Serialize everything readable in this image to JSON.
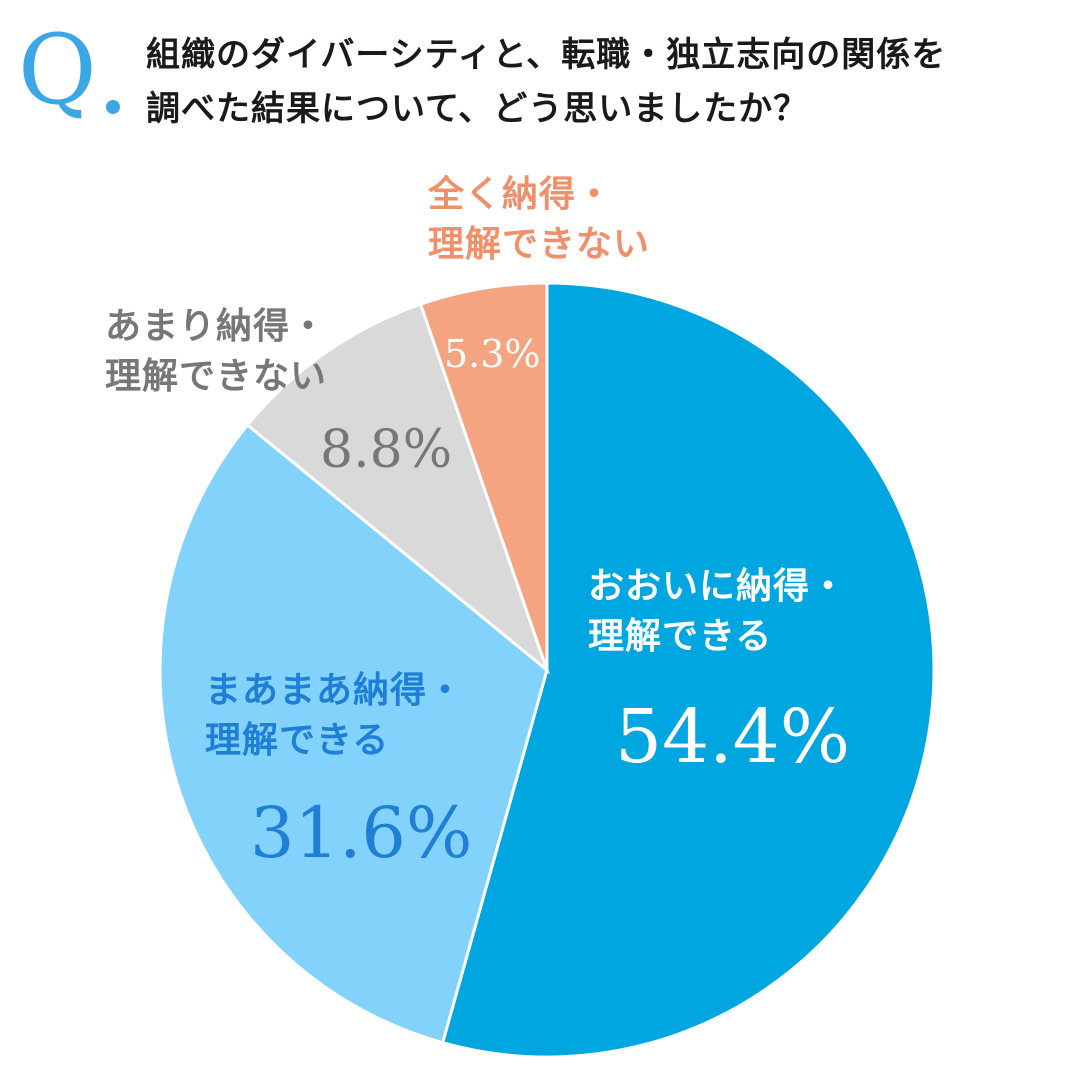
{
  "question": {
    "mark": "Q",
    "line1": "組織のダイバーシティと、転職・独立志向の関係を",
    "line2": "調べた結果について、どう思いましたか？"
  },
  "chart_data": {
    "type": "pie",
    "title": "組織のダイバーシティと、転職・独立志向の関係を調べた結果について、どう思いましたか？",
    "start": "12 o'clock, clockwise",
    "slices": [
      {
        "label_line1": "おおいに納得・",
        "label_line2": "理解できる",
        "value": 54.4,
        "value_label": "54.4%",
        "color": "#00a6e0"
      },
      {
        "label_line1": "まあまあ納得・",
        "label_line2": "理解できる",
        "value": 31.6,
        "value_label": "31.6%",
        "color": "#83d2fb"
      },
      {
        "label_line1": "あまり納得・",
        "label_line2": "理解できない",
        "value": 8.8,
        "value_label": "8.8%",
        "color": "#d9d9d9"
      },
      {
        "label_line1": "全く納得・",
        "label_line2": "理解できない",
        "value": 5.3,
        "value_label": "5.3%",
        "color": "#f5a482"
      }
    ]
  },
  "colors": {
    "accent": "#3ba7e4",
    "label_dark_blue": "#1f7fd6",
    "label_gray": "#777777",
    "label_orange": "#f0906a",
    "white": "#ffffff"
  }
}
